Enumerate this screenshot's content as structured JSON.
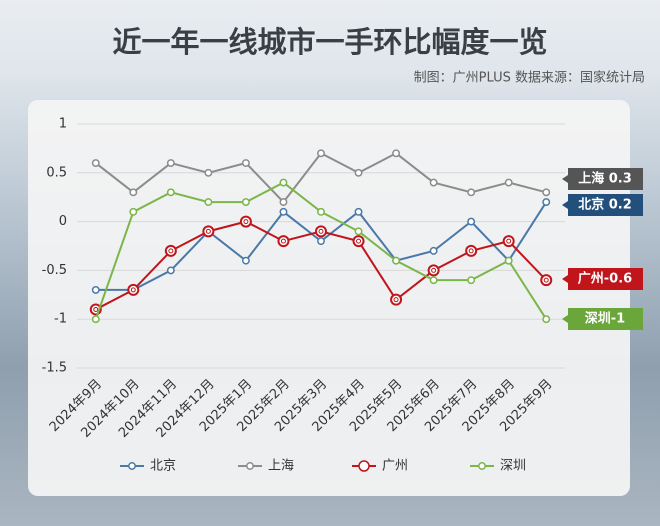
{
  "chart_data": {
    "type": "line",
    "title": "近一年一线城市一手环比幅度一览",
    "subtitle": "制图：广州PLUS  数据来源：国家统计局",
    "categories": [
      "2024年9月",
      "2024年10月",
      "2024年11月",
      "2024年12月",
      "2025年1月",
      "2025年2月",
      "2025年3月",
      "2025年4月",
      "2025年5月",
      "2025年6月",
      "2025年7月",
      "2025年8月",
      "2025年9月"
    ],
    "series": [
      {
        "name": "北京",
        "color": "#4a78a8",
        "end_label": "北京 0.2",
        "label_color": "#234f7d",
        "values": [
          -0.7,
          -0.7,
          -0.5,
          -0.1,
          -0.4,
          0.1,
          -0.2,
          0.1,
          -0.4,
          -0.3,
          0,
          -0.4,
          0.2
        ]
      },
      {
        "name": "上海",
        "color": "#8c8c8c",
        "end_label": "上海 0.3",
        "label_color": "#555555",
        "values": [
          0.6,
          0.3,
          0.6,
          0.5,
          0.6,
          0.2,
          0.7,
          0.5,
          0.7,
          0.4,
          0.3,
          0.4,
          0.3
        ]
      },
      {
        "name": "广州",
        "color": "#c0161b",
        "end_label": "广州-0.6",
        "label_color": "#c0161b",
        "values": [
          -0.9,
          -0.7,
          -0.3,
          -0.1,
          0,
          -0.2,
          -0.1,
          -0.2,
          -0.8,
          -0.5,
          -0.3,
          -0.2,
          -0.6
        ]
      },
      {
        "name": "深圳",
        "color": "#7ab648",
        "end_label": "深圳-1",
        "label_color": "#6aa63a",
        "values": [
          -1,
          0.1,
          0.3,
          0.2,
          0.2,
          0.4,
          0.1,
          -0.1,
          -0.4,
          -0.6,
          -0.6,
          -0.4,
          -1
        ]
      }
    ],
    "ylim": [
      -1.5,
      1
    ],
    "yticks": [
      -1.5,
      -1,
      -0.5,
      0,
      0.5,
      1
    ],
    "grid": true
  }
}
